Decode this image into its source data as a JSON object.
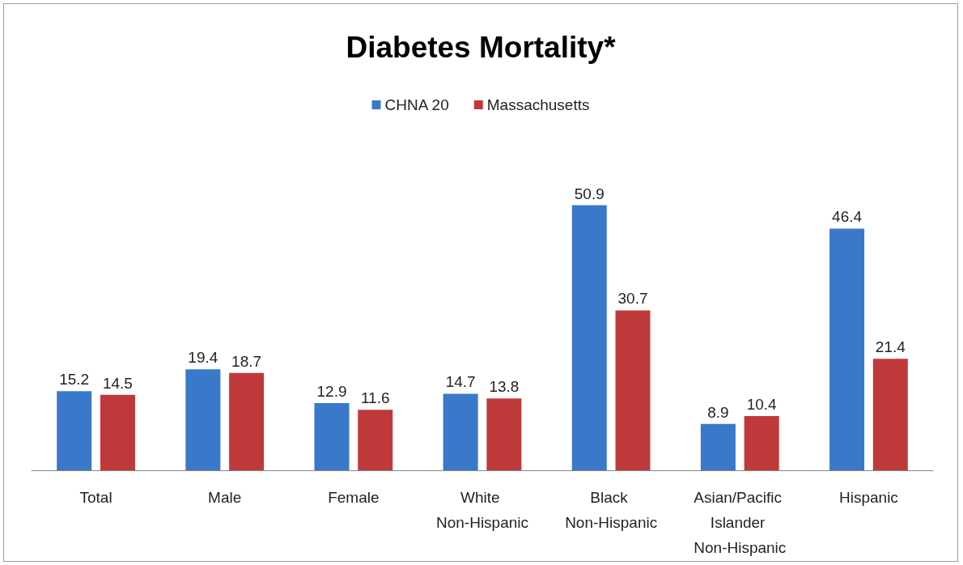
{
  "chart_data": {
    "type": "bar",
    "title": "Diabetes Mortality*",
    "categories": [
      "Total",
      "Male",
      "Female",
      "White Non-Hispanic",
      "Black Non-Hispanic",
      "Asian/Pacific Islander Non-Hispanic",
      "Hispanic"
    ],
    "series": [
      {
        "name": "CHNA 20",
        "color": "#3a78c9",
        "values": [
          15.2,
          19.4,
          12.9,
          14.7,
          50.9,
          8.9,
          46.4
        ]
      },
      {
        "name": "Massachusetts",
        "color": "#c0393a",
        "values": [
          14.5,
          18.7,
          11.6,
          13.8,
          30.7,
          10.4,
          21.4
        ]
      }
    ],
    "data_labels": true,
    "legend": "top"
  }
}
